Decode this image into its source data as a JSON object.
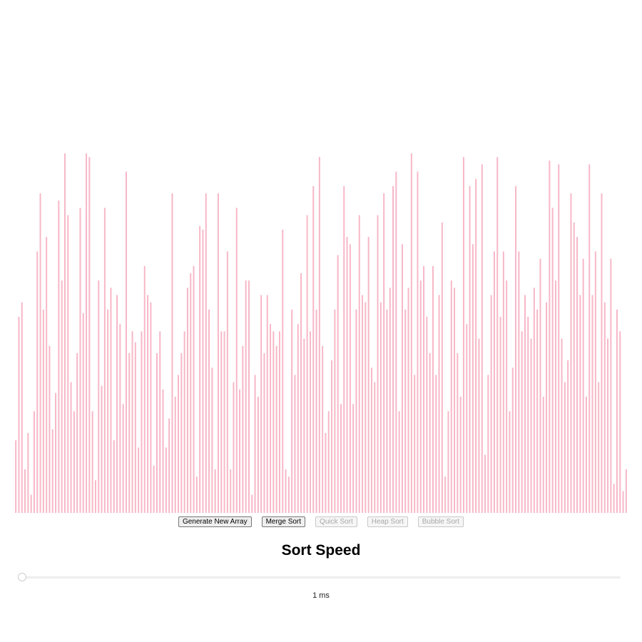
{
  "visualizer": {
    "bar_color": "#f7b7c7",
    "bar_count": 200,
    "value_max": 100,
    "values": [
      20,
      54,
      58,
      12,
      22,
      5,
      28,
      72,
      88,
      56,
      76,
      46,
      23,
      33,
      86,
      64,
      99,
      82,
      36,
      28,
      44,
      84,
      55,
      99,
      98,
      28,
      9,
      64,
      35,
      84,
      56,
      62,
      20,
      60,
      52,
      30,
      94,
      44,
      50,
      47,
      18,
      50,
      68,
      60,
      58,
      13,
      44,
      50,
      34,
      18,
      26,
      88,
      32,
      38,
      44,
      50,
      62,
      66,
      68,
      10,
      79,
      78,
      88,
      56,
      40,
      12,
      88,
      50,
      50,
      72,
      12,
      36,
      84,
      34,
      46,
      64,
      64,
      5,
      38,
      32,
      60,
      44,
      60,
      52,
      50,
      46,
      50,
      78,
      12,
      10,
      56,
      38,
      52,
      66,
      48,
      82,
      50,
      90,
      56,
      98,
      46,
      22,
      28,
      42,
      56,
      71,
      30,
      90,
      76,
      74,
      30,
      56,
      82,
      60,
      58,
      76,
      40,
      36,
      82,
      58,
      88,
      56,
      62,
      90,
      94,
      28,
      74,
      56,
      62,
      99,
      38,
      94,
      64,
      68,
      54,
      44,
      68,
      38,
      60,
      80,
      10,
      28,
      64,
      62,
      44,
      32,
      98,
      52,
      90,
      74,
      92,
      48,
      96,
      16,
      38,
      60,
      72,
      98,
      54,
      72,
      64,
      28,
      40,
      90,
      72,
      50,
      60,
      54,
      48,
      62,
      56,
      70,
      32,
      58,
      97,
      84,
      64,
      96,
      48,
      36,
      42,
      88,
      80,
      76,
      60,
      70,
      32,
      96,
      60,
      72,
      36,
      88,
      58,
      48,
      70,
      8,
      56,
      50,
      6,
      12
    ]
  },
  "controls": {
    "generate_label": "Generate New Array",
    "merge_label": "Merge Sort",
    "quick_label": "Quick Sort",
    "heap_label": "Heap Sort",
    "bubble_label": "Bubble Sort"
  },
  "speed": {
    "title": "Sort Speed",
    "slider_fraction": 0.005,
    "value_text": "1 ms"
  }
}
